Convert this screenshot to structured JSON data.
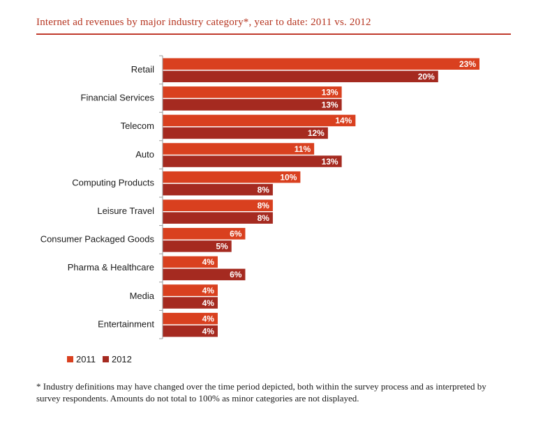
{
  "title": "Internet ad revenues by major industry category*, year to date: 2011 vs. 2012",
  "footnote": "* Industry definitions may have changed over the time period depicted, both within the survey process and as interpreted by survey respondents. Amounts do not total to 100% as minor categories are not displayed.",
  "colors": {
    "s2011": "#d9401f",
    "s2012": "#a52a20",
    "accent": "#c0392b"
  },
  "chart_data": {
    "type": "bar",
    "orientation": "horizontal",
    "title": "Internet ad revenues by major industry category*, year to date: 2011 vs. 2012",
    "categories": [
      "Retail",
      "Financial Services",
      "Telecom",
      "Auto",
      "Computing Products",
      "Leisure Travel",
      "Consumer Packaged Goods",
      "Pharma & Healthcare",
      "Media",
      "Entertainment"
    ],
    "series": [
      {
        "name": "2011",
        "values": [
          23,
          13,
          14,
          11,
          10,
          8,
          6,
          4,
          4,
          4
        ]
      },
      {
        "name": "2012",
        "values": [
          20,
          13,
          12,
          13,
          8,
          8,
          5,
          6,
          4,
          4
        ]
      }
    ],
    "value_labels": [
      [
        "23%",
        "13%",
        "14%",
        "11%",
        "10%",
        "8%",
        "6%",
        "4%",
        "4%",
        "4%"
      ],
      [
        "20%",
        "13%",
        "12%",
        "13%",
        "8%",
        "8%",
        "5%",
        "6%",
        "4%",
        "4%"
      ]
    ],
    "xlim": [
      0,
      23
    ],
    "grid": false,
    "legend": "bottom-left"
  }
}
